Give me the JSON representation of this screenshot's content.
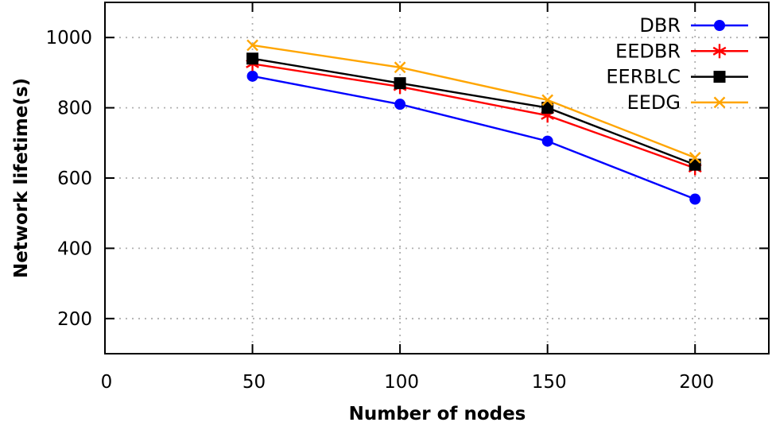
{
  "chart_data": {
    "type": "line",
    "title": "",
    "xlabel": "Number of nodes",
    "ylabel": "Network lifetime(s)",
    "x": [
      50,
      100,
      150,
      200
    ],
    "series": [
      {
        "name": "DBR",
        "color": "#0000ff",
        "marker": "circle",
        "values": [
          890,
          810,
          705,
          540
        ]
      },
      {
        "name": "EEDBR",
        "color": "#ff0000",
        "marker": "asterisk",
        "values": [
          925,
          860,
          778,
          628
        ]
      },
      {
        "name": "EERBLC",
        "color": "#000000",
        "marker": "square",
        "values": [
          940,
          870,
          800,
          638
        ]
      },
      {
        "name": "EEDG",
        "color": "#ffa500",
        "marker": "xcross",
        "values": [
          978,
          915,
          822,
          658
        ]
      }
    ],
    "xlim": [
      0,
      225
    ],
    "ylim": [
      100,
      1100
    ],
    "xticks": [
      0,
      50,
      100,
      150,
      200
    ],
    "yticks": [
      200,
      400,
      600,
      800,
      1000
    ],
    "grid": true,
    "grid_color": "#b0b0b0",
    "axis_color": "#000000",
    "legend_position": "top-right"
  }
}
